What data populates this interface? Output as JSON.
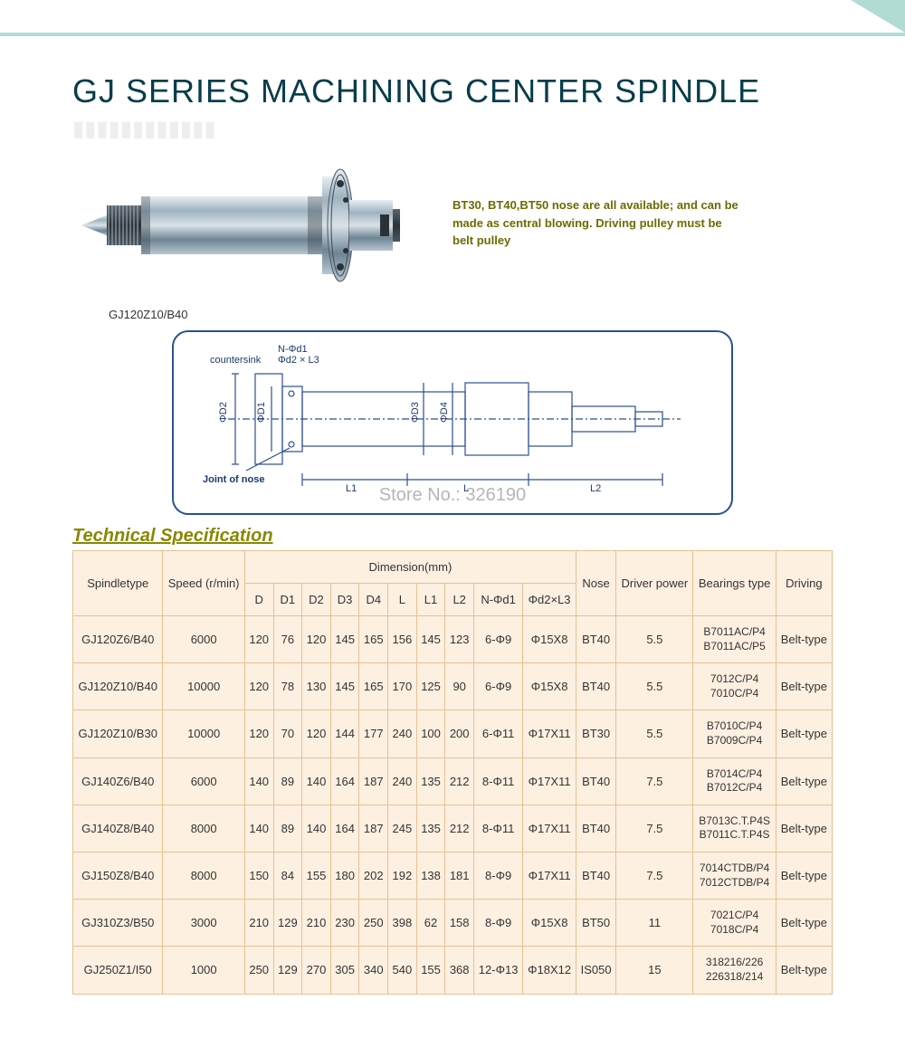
{
  "title": "GJ SERIES MACHINING CENTER SPINDLE",
  "photo_caption": "GJ120Z10/B40",
  "note": "BT30, BT40,BT50 nose are all available; and can be made as central blowing. Driving pulley must be belt pulley",
  "watermark": "Store No.: 326190",
  "diagram_labels": {
    "top1": "N-Φd1",
    "top2": "Φd2 × L3",
    "countersink": "countersink",
    "d2": "ΦD2",
    "d1": "ΦD1",
    "d3": "ΦD3",
    "d4": "ΦD4",
    "joint": "Joint of nose",
    "l1": "L1",
    "l": "L",
    "l2": "L2"
  },
  "tech_spec_label": "Technical Specification",
  "table": {
    "headers": {
      "spindletype": "Spindletype",
      "speed": "Speed (r/min)",
      "dimension": "Dimension(mm)",
      "D": "D",
      "D1": "D1",
      "D2": "D2",
      "D3": "D3",
      "D4": "D4",
      "L": "L",
      "L1": "L1",
      "L2": "L2",
      "Nd1": "N-Φd1",
      "d2L3": "Φd2×L3",
      "nose": "Nose",
      "driver": "Driver power",
      "bearings": "Bearings  type",
      "driving": "Driving"
    },
    "rows": [
      {
        "type": "GJ120Z6/B40",
        "speed": "6000",
        "D": "120",
        "D1": "76",
        "D2": "120",
        "D3": "145",
        "D4": "165",
        "L": "156",
        "L1": "145",
        "L2": "123",
        "Nd1": "6-Φ9",
        "d2L3": "Φ15X8",
        "nose": "BT40",
        "driver": "5.5",
        "bearings": "B7011AC/P4\nB7011AC/P5",
        "driving": "Belt-type"
      },
      {
        "type": "GJ120Z10/B40",
        "speed": "10000",
        "D": "120",
        "D1": "78",
        "D2": "130",
        "D3": "145",
        "D4": "165",
        "L": "170",
        "L1": "125",
        "L2": "90",
        "Nd1": "6-Φ9",
        "d2L3": "Φ15X8",
        "nose": "BT40",
        "driver": "5.5",
        "bearings": "7012C/P4\n7010C/P4",
        "driving": "Belt-type"
      },
      {
        "type": "GJ120Z10/B30",
        "speed": "10000",
        "D": "120",
        "D1": "70",
        "D2": "120",
        "D3": "144",
        "D4": "177",
        "L": "240",
        "L1": "100",
        "L2": "200",
        "Nd1": "6-Φ11",
        "d2L3": "Φ17X11",
        "nose": "BT30",
        "driver": "5.5",
        "bearings": "B7010C/P4\nB7009C/P4",
        "driving": "Belt-type"
      },
      {
        "type": "GJ140Z6/B40",
        "speed": "6000",
        "D": "140",
        "D1": "89",
        "D2": "140",
        "D3": "164",
        "D4": "187",
        "L": "240",
        "L1": "135",
        "L2": "212",
        "Nd1": "8-Φ11",
        "d2L3": "Φ17X11",
        "nose": "BT40",
        "driver": "7.5",
        "bearings": "B7014C/P4\nB7012C/P4",
        "driving": "Belt-type"
      },
      {
        "type": "GJ140Z8/B40",
        "speed": "8000",
        "D": "140",
        "D1": "89",
        "D2": "140",
        "D3": "164",
        "D4": "187",
        "L": "245",
        "L1": "135",
        "L2": "212",
        "Nd1": "8-Φ11",
        "d2L3": "Φ17X11",
        "nose": "BT40",
        "driver": "7.5",
        "bearings": "B7013C.T.P4S\nB7011C.T.P4S",
        "driving": "Belt-type"
      },
      {
        "type": "GJ150Z8/B40",
        "speed": "8000",
        "D": "150",
        "D1": "84",
        "D2": "155",
        "D3": "180",
        "D4": "202",
        "L": "192",
        "L1": "138",
        "L2": "181",
        "Nd1": "8-Φ9",
        "d2L3": "Φ17X11",
        "nose": "BT40",
        "driver": "7.5",
        "bearings": "7014CTDB/P4\n7012CTDB/P4",
        "driving": "Belt-type"
      },
      {
        "type": "GJ310Z3/B50",
        "speed": "3000",
        "D": "210",
        "D1": "129",
        "D2": "210",
        "D3": "230",
        "D4": "250",
        "L": "398",
        "L1": "62",
        "L2": "158",
        "Nd1": "8-Φ9",
        "d2L3": "Φ15X8",
        "nose": "BT50",
        "driver": "11",
        "bearings": "7021C/P4\n7018C/P4",
        "driving": "Belt-type"
      },
      {
        "type": "GJ250Z1/I50",
        "speed": "1000",
        "D": "250",
        "D1": "129",
        "D2": "270",
        "D3": "305",
        "D4": "340",
        "L": "540",
        "L1": "155",
        "L2": "368",
        "Nd1": "12-Φ13",
        "d2L3": "Φ18X12",
        "nose": "IS050",
        "driver": "15",
        "bearings": "318216/226\n226318/214",
        "driving": "Belt-type"
      }
    ]
  },
  "colors": {
    "title": "#073d4a",
    "accent_border": "#b0dcd4",
    "note": "#6b6b00",
    "table_border": "#e8c090",
    "table_bg": "#fdf0e1",
    "diagram_line": "#2a5090"
  }
}
